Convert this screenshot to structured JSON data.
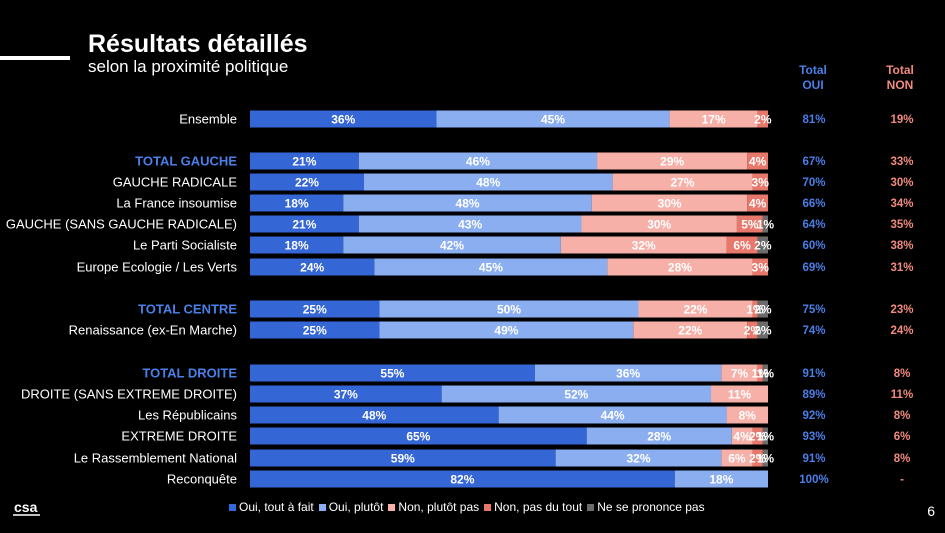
{
  "header": {
    "title": "Résultats détaillés",
    "subtitle": "selon la proximité politique",
    "total_oui": "Total OUI",
    "total_non": "Total NON"
  },
  "page_number": "6",
  "logo_text": "csa",
  "colors": {
    "oui_tout_a_fait": "#3566d6",
    "oui_plutot": "#8aaef0",
    "non_plutot_pas": "#f6b0a8",
    "non_pas_du_tout": "#e8786b",
    "ne_se_prononce_pas": "#6b6b6b",
    "total_oui_text": "#4a7fe8",
    "total_non_text": "#f28b7d",
    "group_label": "#4a7fe8"
  },
  "chart_data": {
    "type": "bar",
    "orientation": "horizontal",
    "stacked": true,
    "xlim": [
      0,
      100
    ],
    "legend_position": "bottom",
    "series": [
      {
        "name": "Oui, tout à fait"
      },
      {
        "name": "Oui, plutôt"
      },
      {
        "name": "Non, plutôt pas"
      },
      {
        "name": "Non, pas du tout"
      },
      {
        "name": "Ne se prononce pas"
      }
    ],
    "rows": [
      {
        "label": "Ensemble",
        "group": false,
        "values": [
          36,
          45,
          17,
          2,
          0
        ],
        "labels": [
          "36%",
          "45%",
          "17%",
          "2%",
          ""
        ],
        "total_oui": "81%",
        "total_non": "19%"
      },
      {
        "label": "TOTAL GAUCHE",
        "group": true,
        "values": [
          21,
          46,
          29,
          4,
          0
        ],
        "labels": [
          "21%",
          "46%",
          "29%",
          "4%",
          ""
        ],
        "total_oui": "67%",
        "total_non": "33%"
      },
      {
        "label": "GAUCHE RADICALE",
        "group": false,
        "values": [
          22,
          48,
          27,
          3,
          0
        ],
        "labels": [
          "22%",
          "48%",
          "27%",
          "3%",
          ""
        ],
        "total_oui": "70%",
        "total_non": "30%"
      },
      {
        "label": "La France insoumise",
        "group": false,
        "values": [
          18,
          48,
          30,
          4,
          0
        ],
        "labels": [
          "18%",
          "48%",
          "30%",
          "4%",
          ""
        ],
        "total_oui": "66%",
        "total_non": "34%"
      },
      {
        "label": "GAUCHE (SANS GAUCHE RADICALE)",
        "group": false,
        "values": [
          21,
          43,
          30,
          5,
          1
        ],
        "labels": [
          "21%",
          "43%",
          "30%",
          "5%",
          "1%"
        ],
        "total_oui": "64%",
        "total_non": "35%"
      },
      {
        "label": "Le Parti Socialiste",
        "group": false,
        "values": [
          18,
          42,
          32,
          6,
          2
        ],
        "labels": [
          "18%",
          "42%",
          "32%",
          "6%",
          "2%"
        ],
        "total_oui": "60%",
        "total_non": "38%"
      },
      {
        "label": "Europe Ecologie / Les Verts",
        "group": false,
        "values": [
          24,
          45,
          28,
          3,
          0
        ],
        "labels": [
          "24%",
          "45%",
          "28%",
          "3%",
          ""
        ],
        "total_oui": "69%",
        "total_non": "31%"
      },
      {
        "label": "TOTAL CENTRE",
        "group": true,
        "values": [
          25,
          50,
          22,
          1,
          2
        ],
        "labels": [
          "25%",
          "50%",
          "22%",
          "1%",
          "2%"
        ],
        "total_oui": "75%",
        "total_non": "23%"
      },
      {
        "label": "Renaissance (ex-En Marche)",
        "group": false,
        "values": [
          25,
          49,
          22,
          2,
          2
        ],
        "labels": [
          "25%",
          "49%",
          "22%",
          "2%",
          "2%"
        ],
        "total_oui": "74%",
        "total_non": "24%"
      },
      {
        "label": "TOTAL DROITE",
        "group": true,
        "values": [
          55,
          36,
          7,
          1,
          1
        ],
        "labels": [
          "55%",
          "36%",
          "7%",
          "1%",
          "1%"
        ],
        "total_oui": "91%",
        "total_non": "8%"
      },
      {
        "label": "DROITE (SANS EXTREME DROITE)",
        "group": false,
        "values": [
          37,
          52,
          11,
          0,
          0
        ],
        "labels": [
          "37%",
          "52%",
          "11%",
          "",
          ""
        ],
        "total_oui": "89%",
        "total_non": "11%"
      },
      {
        "label": "Les Républicains",
        "group": false,
        "values": [
          48,
          44,
          8,
          0,
          0
        ],
        "labels": [
          "48%",
          "44%",
          "8%",
          "",
          ""
        ],
        "total_oui": "92%",
        "total_non": "8%"
      },
      {
        "label": "EXTREME DROITE",
        "group": false,
        "values": [
          65,
          28,
          4,
          2,
          1
        ],
        "labels": [
          "65%",
          "28%",
          "4%",
          "2%",
          "1%"
        ],
        "total_oui": "93%",
        "total_non": "6%"
      },
      {
        "label": "Le Rassemblement National",
        "group": false,
        "values": [
          59,
          32,
          6,
          2,
          1
        ],
        "labels": [
          "59%",
          "32%",
          "6%",
          "2%",
          "1%"
        ],
        "total_oui": "91%",
        "total_non": "8%"
      },
      {
        "label": "Reconquête",
        "group": false,
        "values": [
          82,
          18,
          0,
          0,
          0
        ],
        "labels": [
          "82%",
          "18%",
          "",
          "",
          ""
        ],
        "total_oui": "100%",
        "total_non": "-"
      }
    ]
  }
}
